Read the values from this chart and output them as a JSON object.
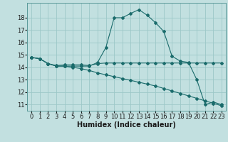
{
  "xlabel": "Humidex (Indice chaleur)",
  "bg_color": "#c2e0e0",
  "grid_color": "#9cc8c8",
  "line_color": "#1a6b6b",
  "xlim": [
    -0.5,
    23.5
  ],
  "ylim": [
    10.5,
    19.2
  ],
  "yticks": [
    11,
    12,
    13,
    14,
    15,
    16,
    17,
    18
  ],
  "xticks": [
    0,
    1,
    2,
    3,
    4,
    5,
    6,
    7,
    8,
    9,
    10,
    11,
    12,
    13,
    14,
    15,
    16,
    17,
    18,
    19,
    20,
    21,
    22,
    23
  ],
  "line1_x": [
    0,
    1,
    2,
    3,
    4,
    5,
    6,
    7,
    8,
    9,
    10,
    11,
    12,
    13,
    14,
    15,
    16,
    17,
    18,
    19,
    20,
    21,
    22,
    23
  ],
  "line1_y": [
    14.8,
    14.7,
    14.3,
    14.1,
    14.1,
    14.1,
    14.1,
    14.1,
    14.4,
    15.6,
    18.0,
    18.0,
    18.35,
    18.65,
    18.2,
    17.6,
    16.9,
    14.9,
    14.5,
    14.4,
    13.0,
    11.0,
    11.2,
    11.0
  ],
  "line2_x": [
    0,
    1,
    2,
    3,
    4,
    5,
    6,
    7,
    8,
    9,
    10,
    11,
    12,
    13,
    14,
    15,
    16,
    17,
    18,
    19,
    20,
    21,
    22,
    23
  ],
  "line2_y": [
    14.8,
    14.7,
    14.3,
    14.15,
    14.2,
    14.2,
    14.2,
    14.15,
    14.3,
    14.35,
    14.35,
    14.35,
    14.35,
    14.35,
    14.35,
    14.35,
    14.35,
    14.35,
    14.35,
    14.35,
    14.35,
    14.35,
    14.35,
    14.35
  ],
  "line3_x": [
    0,
    1,
    2,
    3,
    4,
    5,
    6,
    7,
    8,
    9,
    10,
    11,
    12,
    13,
    14,
    15,
    16,
    17,
    18,
    19,
    20,
    21,
    22,
    23
  ],
  "line3_y": [
    14.8,
    14.7,
    14.3,
    14.1,
    14.1,
    14.0,
    13.9,
    13.75,
    13.55,
    13.4,
    13.25,
    13.1,
    12.95,
    12.8,
    12.65,
    12.5,
    12.3,
    12.1,
    11.9,
    11.7,
    11.5,
    11.3,
    11.1,
    10.9
  ],
  "tick_fontsize": 6,
  "xlabel_fontsize": 7,
  "linewidth": 0.8,
  "markersize": 2.0
}
